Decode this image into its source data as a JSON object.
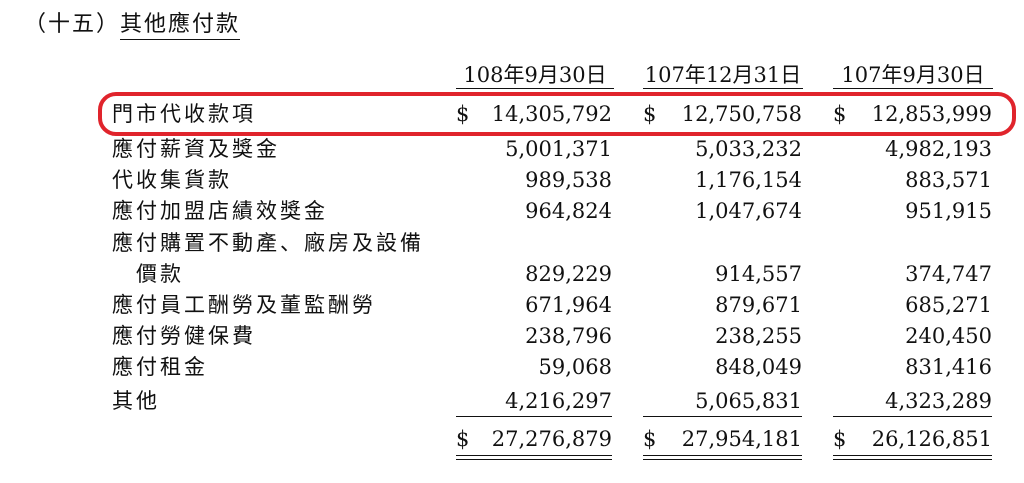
{
  "title": {
    "number": "（十五）",
    "name": "其他應付款"
  },
  "columns": [
    "108年9月30日",
    "107年12月31日",
    "107年9月30日"
  ],
  "currency_symbol": "$",
  "highlight_color": "#e0242c",
  "rows": [
    {
      "label": "門市代收款項",
      "values": [
        "14,305,792",
        "12,750,758",
        "12,853,999"
      ]
    },
    {
      "label": "應付薪資及獎金",
      "values": [
        "5,001,371",
        "5,033,232",
        "4,982,193"
      ]
    },
    {
      "label": "代收集貨款",
      "values": [
        "989,538",
        "1,176,154",
        "883,571"
      ]
    },
    {
      "label": "應付加盟店績效獎金",
      "values": [
        "964,824",
        "1,047,674",
        "951,915"
      ]
    },
    {
      "label": "應付購置不動產、廠房及設備",
      "values": [
        "",
        "",
        ""
      ]
    },
    {
      "label": "價款",
      "values": [
        "829,229",
        "914,557",
        "374,747"
      ]
    },
    {
      "label": "應付員工酬勞及董監酬勞",
      "values": [
        "671,964",
        "879,671",
        "685,271"
      ]
    },
    {
      "label": "應付勞健保費",
      "values": [
        "238,796",
        "238,255",
        "240,450"
      ]
    },
    {
      "label": "應付租金",
      "values": [
        "59,068",
        "848,049",
        "831,416"
      ]
    },
    {
      "label": "其他",
      "values": [
        "4,216,297",
        "5,065,831",
        "4,323,289"
      ]
    }
  ],
  "totals": [
    "27,276,879",
    "27,954,181",
    "26,126,851"
  ]
}
